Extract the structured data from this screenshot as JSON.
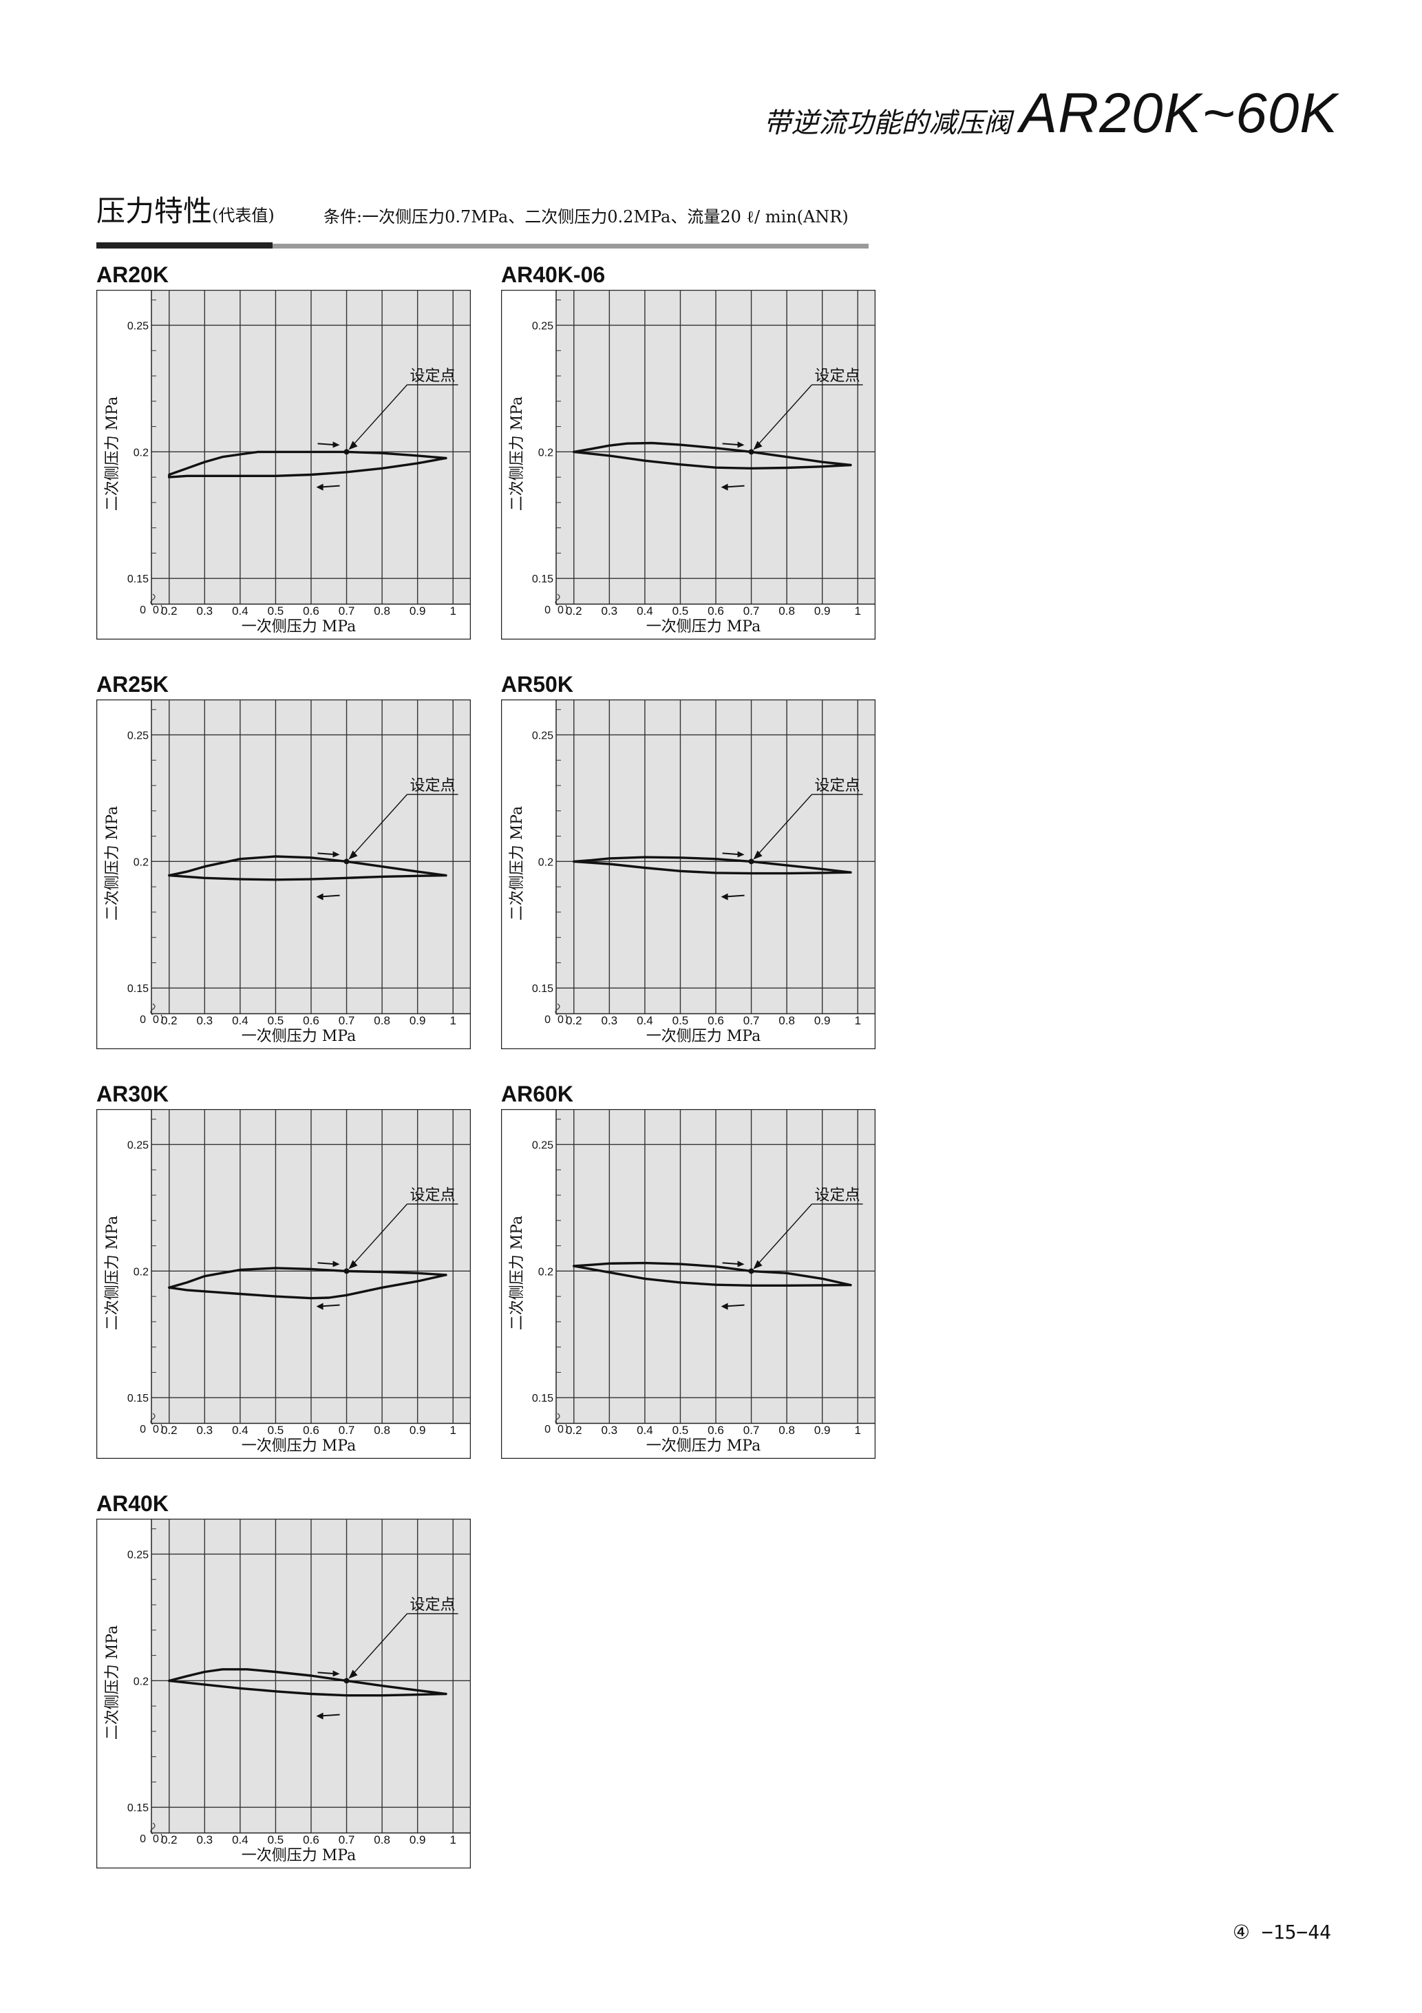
{
  "header": {
    "subtitle": "带逆流功能的减压阀",
    "title": "AR20K~60K"
  },
  "section": {
    "title": "压力特性",
    "title_note": "(代表值)",
    "condition": "条件:一次侧压力0.7MPa、二次侧压力0.2MPa、流量20 ℓ/ min(ANR)"
  },
  "page_number": "④ −15−44",
  "chart_data": [
    {
      "name": "AR20K",
      "type": "line",
      "title": "AR20K",
      "xlabel": "一次侧压力 MPa",
      "ylabel": "二次侧压力 MPa",
      "xlim": [
        0.15,
        1.05
      ],
      "ylim": [
        0.14,
        0.264
      ],
      "xticks": [
        "0.2",
        "0.3",
        "0.4",
        "0.5",
        "0.6",
        "0.7",
        "0.8",
        "0.9",
        "1"
      ],
      "yticks": [
        "0.15",
        "0.2",
        "0.25"
      ],
      "annotation": "设定点",
      "set_point": [
        0.7,
        0.2
      ],
      "series": [
        {
          "x": [
            0.7,
            0.6,
            0.5,
            0.45,
            0.4,
            0.35,
            0.3,
            0.25,
            0.2,
            0.2
          ],
          "y": [
            0.2,
            0.2,
            0.2,
            0.2,
            0.199,
            0.198,
            0.196,
            0.1935,
            0.191,
            0.19
          ]
        },
        {
          "x": [
            0.2,
            0.25,
            0.3,
            0.4,
            0.5,
            0.6,
            0.7,
            0.8,
            0.9,
            0.98
          ],
          "y": [
            0.19,
            0.1905,
            0.1905,
            0.1905,
            0.1905,
            0.191,
            0.192,
            0.1935,
            0.1955,
            0.1975
          ]
        },
        {
          "x": [
            0.98,
            0.9,
            0.8,
            0.7
          ],
          "y": [
            0.1975,
            0.1985,
            0.1995,
            0.2
          ]
        }
      ]
    },
    {
      "name": "AR40K-06",
      "type": "line",
      "title": "AR40K-06",
      "xlabel": "一次侧压力 MPa",
      "ylabel": "二次侧压力 MPa",
      "xlim": [
        0.15,
        1.05
      ],
      "ylim": [
        0.14,
        0.264
      ],
      "xticks": [
        "0.2",
        "0.3",
        "0.4",
        "0.5",
        "0.6",
        "0.7",
        "0.8",
        "0.9",
        "1"
      ],
      "yticks": [
        "0.15",
        "0.2",
        "0.25"
      ],
      "annotation": "设定点",
      "set_point": [
        0.7,
        0.2
      ],
      "series": [
        {
          "x": [
            0.7,
            0.6,
            0.5,
            0.42,
            0.35,
            0.3,
            0.25,
            0.2
          ],
          "y": [
            0.2,
            0.2015,
            0.2028,
            0.2035,
            0.2033,
            0.2025,
            0.2012,
            0.2
          ]
        },
        {
          "x": [
            0.2,
            0.3,
            0.4,
            0.5,
            0.6,
            0.7,
            0.8,
            0.9,
            0.98
          ],
          "y": [
            0.2,
            0.1985,
            0.1965,
            0.195,
            0.1938,
            0.1935,
            0.1937,
            0.1942,
            0.1948
          ]
        },
        {
          "x": [
            0.98,
            0.9,
            0.8,
            0.7
          ],
          "y": [
            0.1948,
            0.196,
            0.198,
            0.2
          ]
        }
      ]
    },
    {
      "name": "AR25K",
      "type": "line",
      "title": "AR25K",
      "xlabel": "一次侧压力 MPa",
      "ylabel": "二次侧压力 MPa",
      "xlim": [
        0.15,
        1.05
      ],
      "ylim": [
        0.14,
        0.264
      ],
      "xticks": [
        "0.2",
        "0.3",
        "0.4",
        "0.5",
        "0.6",
        "0.7",
        "0.8",
        "0.9",
        "1"
      ],
      "yticks": [
        "0.15",
        "0.2",
        "0.25"
      ],
      "annotation": "设定点",
      "set_point": [
        0.7,
        0.2
      ],
      "series": [
        {
          "x": [
            0.7,
            0.6,
            0.5,
            0.4,
            0.3,
            0.25,
            0.2
          ],
          "y": [
            0.2,
            0.2015,
            0.202,
            0.201,
            0.198,
            0.196,
            0.1945
          ]
        },
        {
          "x": [
            0.2,
            0.3,
            0.4,
            0.5,
            0.6,
            0.7,
            0.8,
            0.9,
            0.98
          ],
          "y": [
            0.1945,
            0.1935,
            0.193,
            0.1928,
            0.193,
            0.1935,
            0.194,
            0.1943,
            0.1945
          ]
        },
        {
          "x": [
            0.98,
            0.9,
            0.8,
            0.7
          ],
          "y": [
            0.1945,
            0.196,
            0.198,
            0.2
          ]
        }
      ]
    },
    {
      "name": "AR50K",
      "type": "line",
      "title": "AR50K",
      "xlabel": "一次侧压力 MPa",
      "ylabel": "二次侧压力 MPa",
      "xlim": [
        0.15,
        1.05
      ],
      "ylim": [
        0.14,
        0.264
      ],
      "xticks": [
        "0.2",
        "0.3",
        "0.4",
        "0.5",
        "0.6",
        "0.7",
        "0.8",
        "0.9",
        "1"
      ],
      "yticks": [
        "0.15",
        "0.2",
        "0.25"
      ],
      "annotation": "设定点",
      "set_point": [
        0.7,
        0.2
      ],
      "series": [
        {
          "x": [
            0.7,
            0.6,
            0.5,
            0.4,
            0.3,
            0.25,
            0.2
          ],
          "y": [
            0.2,
            0.201,
            0.2015,
            0.2017,
            0.2012,
            0.2005,
            0.2
          ]
        },
        {
          "x": [
            0.2,
            0.3,
            0.4,
            0.5,
            0.6,
            0.7,
            0.8,
            0.9,
            0.98
          ],
          "y": [
            0.2,
            0.199,
            0.1975,
            0.1962,
            0.1955,
            0.1953,
            0.1953,
            0.1955,
            0.1957
          ]
        },
        {
          "x": [
            0.98,
            0.9,
            0.8,
            0.7
          ],
          "y": [
            0.1957,
            0.197,
            0.1985,
            0.2
          ]
        }
      ]
    },
    {
      "name": "AR30K",
      "type": "line",
      "title": "AR30K",
      "xlabel": "一次侧压力 MPa",
      "ylabel": "二次侧压力 MPa",
      "xlim": [
        0.15,
        1.05
      ],
      "ylim": [
        0.14,
        0.264
      ],
      "xticks": [
        "0.2",
        "0.3",
        "0.4",
        "0.5",
        "0.6",
        "0.7",
        "0.8",
        "0.9",
        "1"
      ],
      "yticks": [
        "0.15",
        "0.2",
        "0.25"
      ],
      "annotation": "设定点",
      "set_point": [
        0.7,
        0.2
      ],
      "series": [
        {
          "x": [
            0.7,
            0.6,
            0.5,
            0.4,
            0.3,
            0.25,
            0.2
          ],
          "y": [
            0.2,
            0.2008,
            0.2012,
            0.2005,
            0.198,
            0.1955,
            0.1935
          ]
        },
        {
          "x": [
            0.2,
            0.25,
            0.3,
            0.4,
            0.5,
            0.6,
            0.65,
            0.7,
            0.8,
            0.9,
            0.98
          ],
          "y": [
            0.1935,
            0.1925,
            0.192,
            0.191,
            0.19,
            0.1893,
            0.1895,
            0.1905,
            0.1935,
            0.196,
            0.1985
          ]
        },
        {
          "x": [
            0.98,
            0.9,
            0.8,
            0.7
          ],
          "y": [
            0.1985,
            0.1992,
            0.1997,
            0.2
          ]
        }
      ]
    },
    {
      "name": "AR60K",
      "type": "line",
      "title": "AR60K",
      "xlabel": "一次侧压力 MPa",
      "ylabel": "二次侧压力 MPa",
      "xlim": [
        0.15,
        1.05
      ],
      "ylim": [
        0.14,
        0.264
      ],
      "xticks": [
        "0.2",
        "0.3",
        "0.4",
        "0.5",
        "0.6",
        "0.7",
        "0.8",
        "0.9",
        "1"
      ],
      "yticks": [
        "0.15",
        "0.2",
        "0.25"
      ],
      "annotation": "设定点",
      "set_point": [
        0.7,
        0.2
      ],
      "series": [
        {
          "x": [
            0.7,
            0.6,
            0.5,
            0.4,
            0.3,
            0.25,
            0.2
          ],
          "y": [
            0.2,
            0.2018,
            0.2028,
            0.2032,
            0.203,
            0.2025,
            0.202
          ]
        },
        {
          "x": [
            0.2,
            0.3,
            0.4,
            0.5,
            0.6,
            0.7,
            0.8,
            0.9,
            0.98
          ],
          "y": [
            0.202,
            0.1995,
            0.197,
            0.1955,
            0.1946,
            0.1943,
            0.1943,
            0.1944,
            0.1945
          ]
        },
        {
          "x": [
            0.98,
            0.9,
            0.8,
            0.7
          ],
          "y": [
            0.1945,
            0.197,
            0.1992,
            0.2
          ]
        }
      ]
    },
    {
      "name": "AR40K",
      "type": "line",
      "title": "AR40K",
      "xlabel": "一次侧压力 MPa",
      "ylabel": "二次侧压力 MPa",
      "xlim": [
        0.15,
        1.05
      ],
      "ylim": [
        0.14,
        0.264
      ],
      "xticks": [
        "0.2",
        "0.3",
        "0.4",
        "0.5",
        "0.6",
        "0.7",
        "0.8",
        "0.9",
        "1"
      ],
      "yticks": [
        "0.15",
        "0.2",
        "0.25"
      ],
      "annotation": "设定点",
      "set_point": [
        0.7,
        0.2
      ],
      "series": [
        {
          "x": [
            0.7,
            0.6,
            0.5,
            0.42,
            0.35,
            0.3,
            0.25,
            0.2
          ],
          "y": [
            0.2,
            0.202,
            0.2035,
            0.2045,
            0.2045,
            0.2035,
            0.2018,
            0.2
          ]
        },
        {
          "x": [
            0.2,
            0.3,
            0.4,
            0.5,
            0.6,
            0.7,
            0.8,
            0.9,
            0.98
          ],
          "y": [
            0.2,
            0.1985,
            0.197,
            0.1958,
            0.1948,
            0.1942,
            0.1942,
            0.1945,
            0.1948
          ]
        },
        {
          "x": [
            0.98,
            0.9,
            0.8,
            0.7
          ],
          "y": [
            0.1948,
            0.1962,
            0.198,
            0.2
          ]
        }
      ]
    }
  ]
}
